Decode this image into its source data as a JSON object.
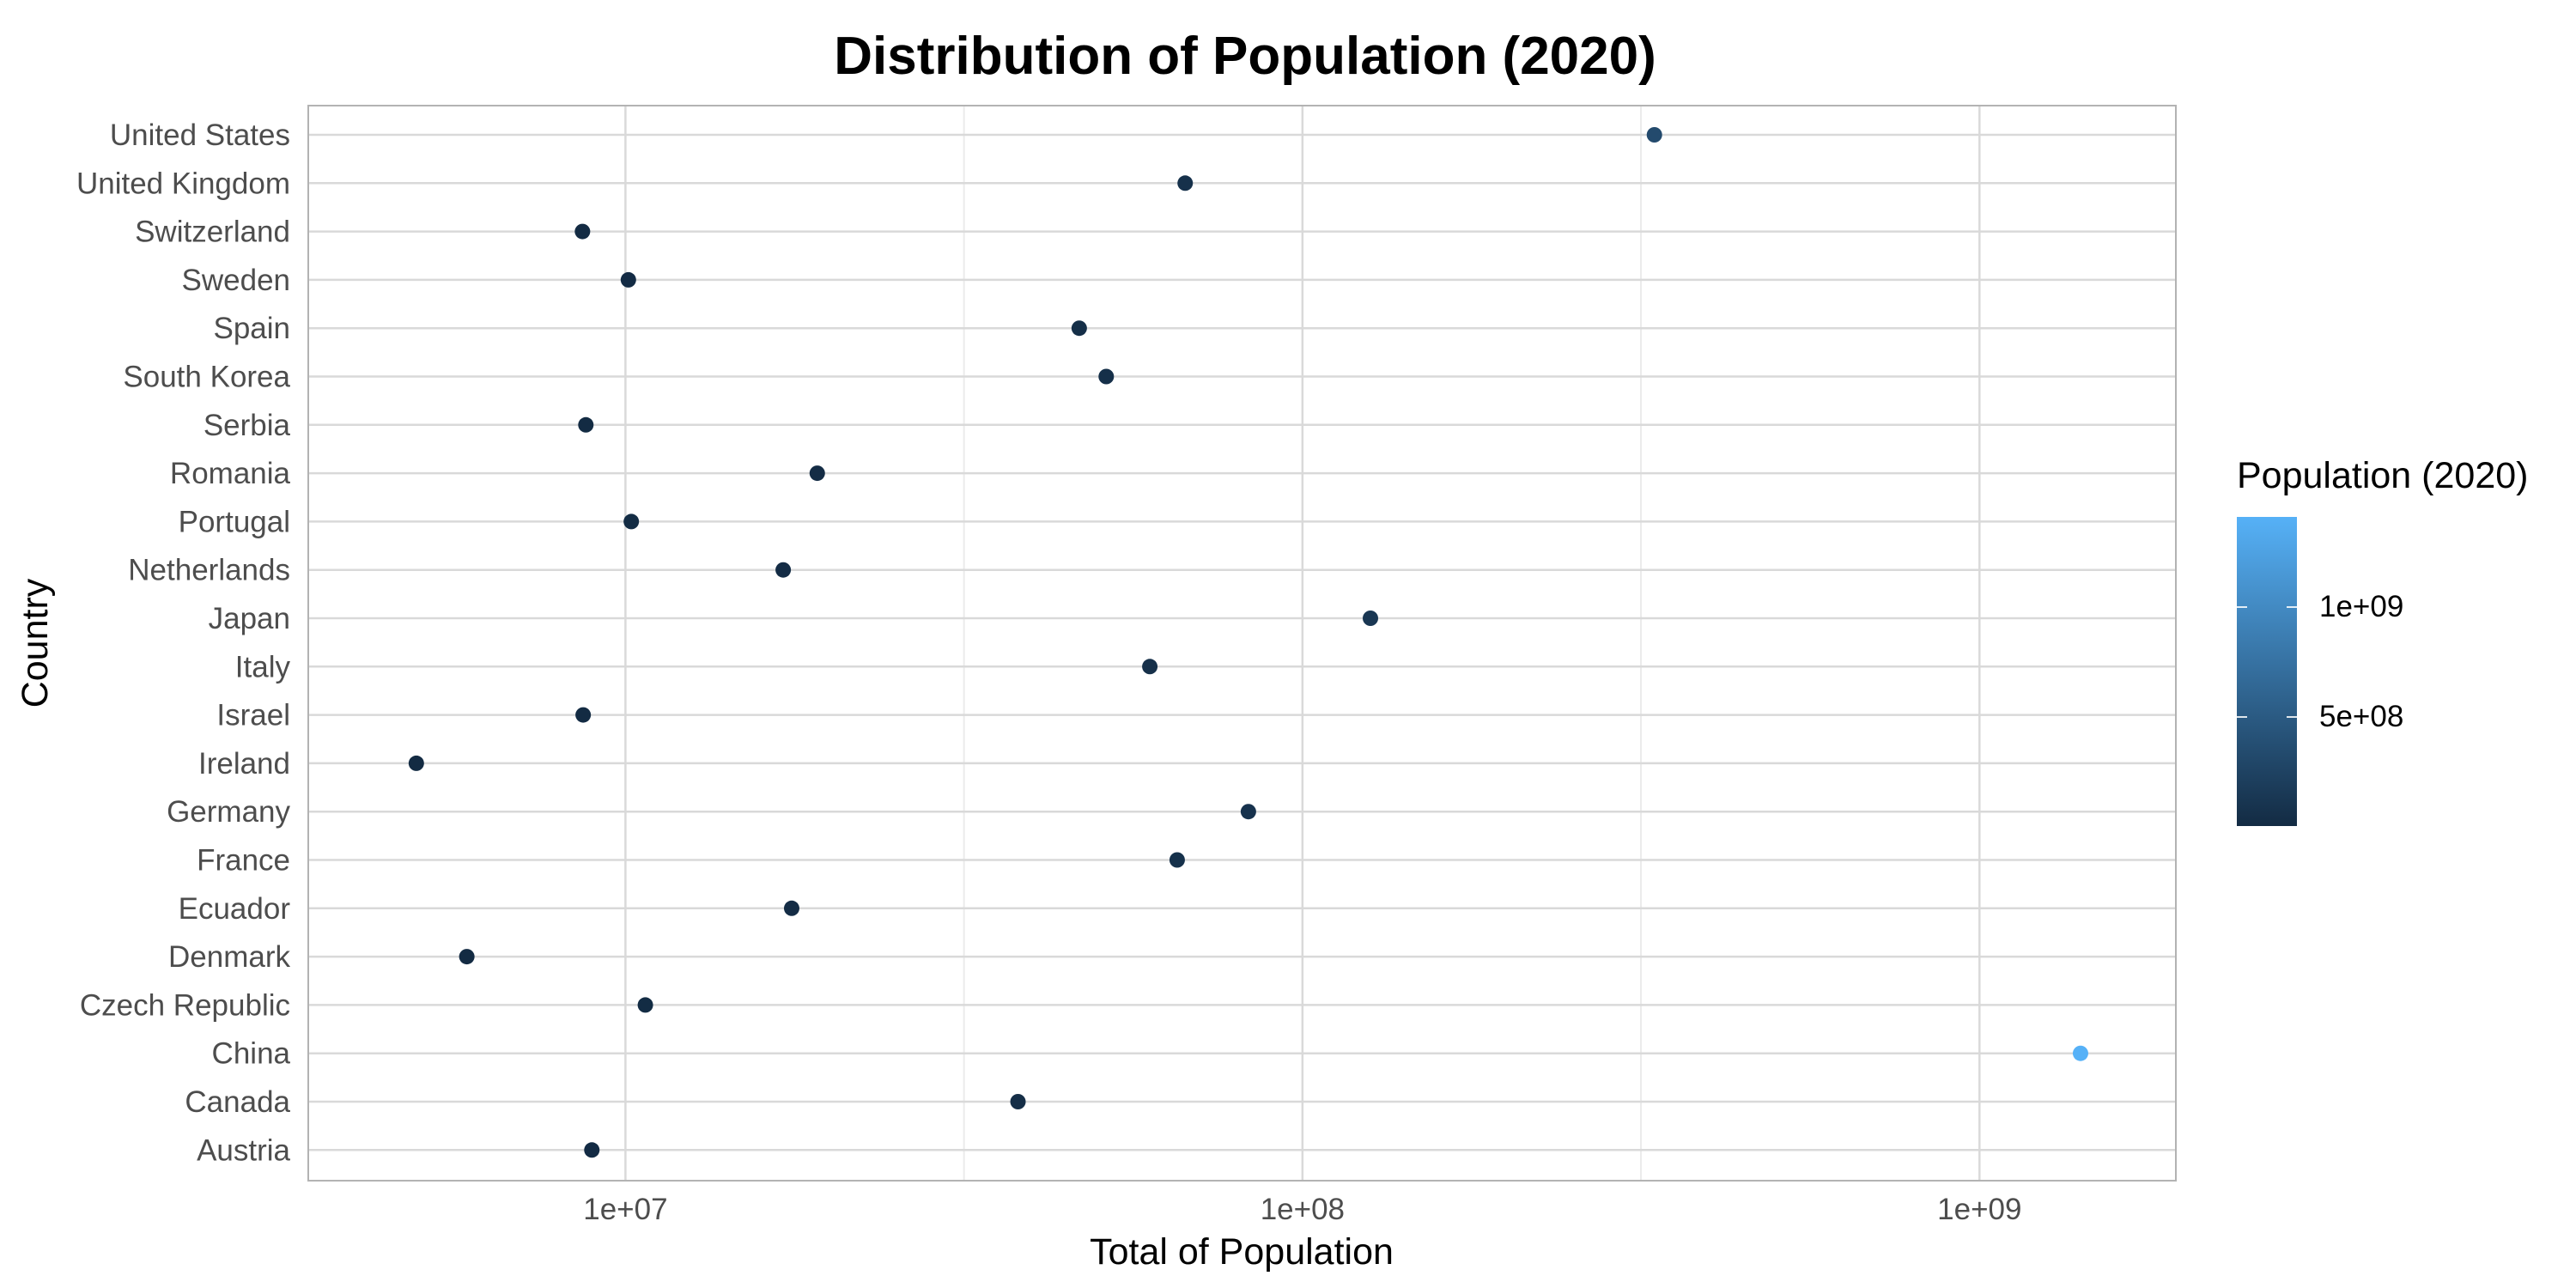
{
  "chart_data": {
    "type": "scatter",
    "title": "Distribution of Population (2020)",
    "xlabel": "Total of Population",
    "ylabel": "Country",
    "x_scale": "log10",
    "xlim": [
      3400000,
      1950000000
    ],
    "x_ticks": [
      {
        "value": 10000000,
        "label": "1e+07"
      },
      {
        "value": 100000000,
        "label": "1e+08"
      },
      {
        "value": 1000000000,
        "label": "1e+09"
      }
    ],
    "grid": true,
    "categories": [
      "United States",
      "United Kingdom",
      "Switzerland",
      "Sweden",
      "Spain",
      "South Korea",
      "Serbia",
      "Romania",
      "Portugal",
      "Netherlands",
      "Japan",
      "Italy",
      "Israel",
      "Ireland",
      "Germany",
      "France",
      "Ecuador",
      "Denmark",
      "Czech Republic",
      "China",
      "Canada",
      "Austria"
    ],
    "values": [
      331000000,
      67100000,
      8640000,
      10100000,
      46800000,
      51300000,
      8740000,
      19200000,
      10200000,
      17100000,
      126000000,
      59500000,
      8660000,
      4910000,
      83200000,
      65300000,
      17600000,
      5830000,
      10700000,
      1410000000,
      38000000,
      8920000
    ],
    "legend": {
      "title": "Population (2020)",
      "position": "right",
      "type": "colorbar",
      "range": [
        4910000,
        1410000000
      ],
      "ticks": [
        {
          "value": 500000000,
          "label": "5e+08"
        },
        {
          "value": 1000000000,
          "label": "1e+09"
        }
      ],
      "low_color": "#132B43",
      "high_color": "#56B1F7"
    }
  }
}
